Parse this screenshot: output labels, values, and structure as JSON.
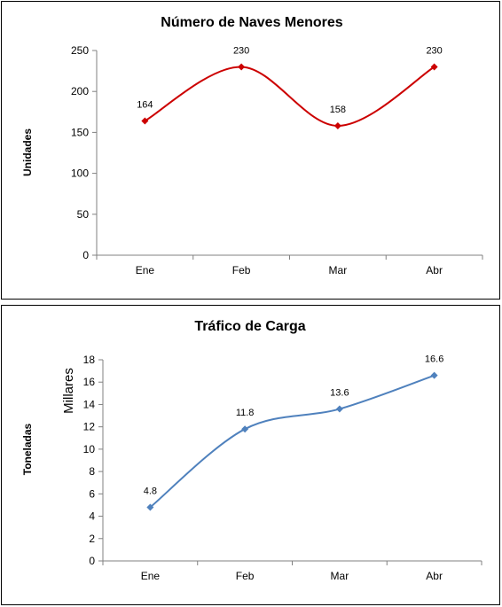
{
  "chart_data": [
    {
      "type": "line",
      "title": "Número de Naves Menores",
      "xlabel": "",
      "ylabel": "Unidades",
      "categories": [
        "Ene",
        "Feb",
        "Mar",
        "Abr"
      ],
      "series": [
        {
          "values": [
            164,
            230,
            158,
            230
          ],
          "color": "#cc0000"
        }
      ],
      "data_labels": [
        "164",
        "230",
        "158",
        "230"
      ],
      "yticks": [
        "0",
        "50",
        "100",
        "150",
        "200",
        "250"
      ],
      "ylim": [
        0,
        250
      ],
      "grid": false,
      "smooth": true
    },
    {
      "type": "line",
      "title": "Tráfico de Carga",
      "xlabel": "",
      "ylabel": "Toneladas",
      "unit_label": "Millares",
      "categories": [
        "Ene",
        "Feb",
        "Mar",
        "Abr"
      ],
      "series": [
        {
          "values": [
            4.8,
            11.8,
            13.6,
            16.6
          ],
          "color": "#4f81bd"
        }
      ],
      "data_labels": [
        "4.8",
        "11.8",
        "13.6",
        "16.6"
      ],
      "yticks": [
        "0",
        "2",
        "4",
        "6",
        "8",
        "10",
        "12",
        "14",
        "16",
        "18"
      ],
      "ylim": [
        0,
        18
      ],
      "grid": false,
      "smooth": true
    }
  ]
}
